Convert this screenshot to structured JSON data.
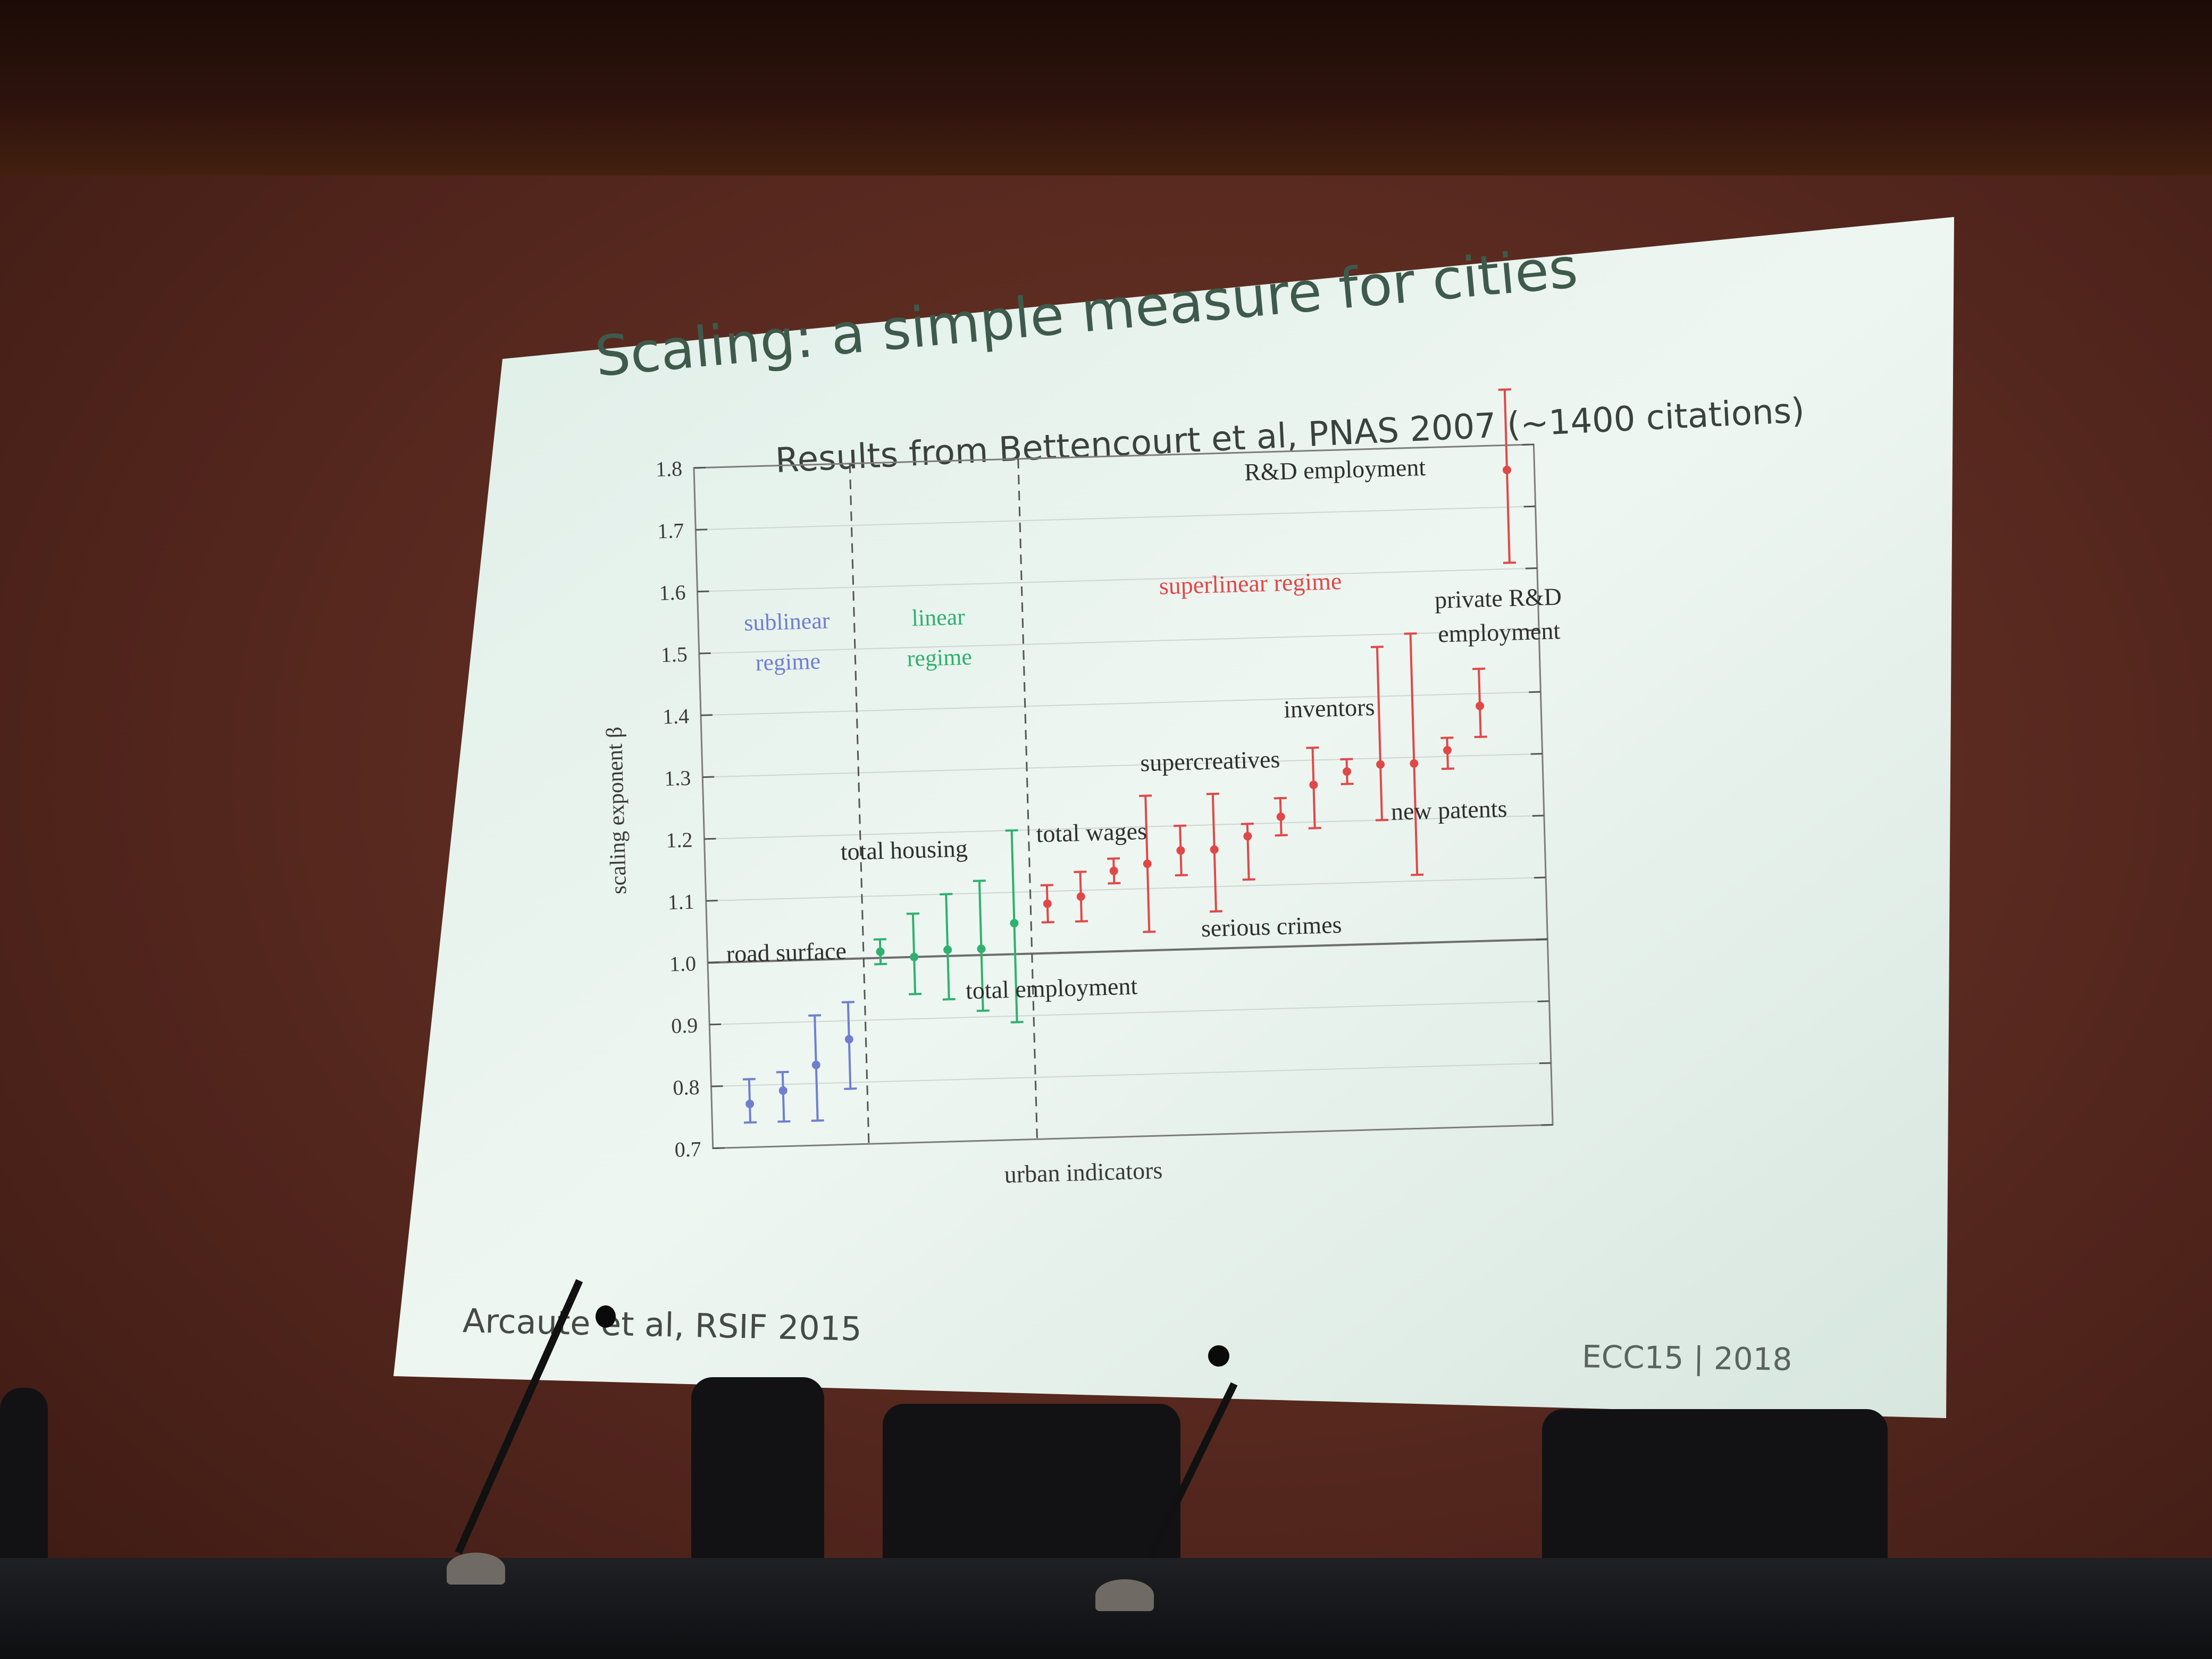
{
  "slide": {
    "title": "Scaling: a simple measure for cities",
    "subtitle": "Results from Bettencourt et al, PNAS 2007 (~1400 citations)",
    "footer_left": "Arcaute et al, RSIF 2015",
    "footer_right": "ECC15 | 2018"
  },
  "chart_data": {
    "type": "scatter",
    "xlabel": "urban indicators",
    "ylabel": "scaling exponent β",
    "ylim": [
      0.7,
      1.8
    ],
    "yticks": [
      "0.7",
      "0.8",
      "0.9",
      "1.0",
      "1.1",
      "1.2",
      "1.3",
      "1.4",
      "1.5",
      "1.6",
      "1.7",
      "1.8"
    ],
    "grid": true,
    "reference_line": 1.0,
    "regimes": [
      {
        "label_line1": "sublinear",
        "label_line2": "regime",
        "color": "#6f7fd0"
      },
      {
        "label_line1": "linear",
        "label_line2": "regime",
        "color": "#2fb070"
      },
      {
        "label_line1": "superlinear regime",
        "label_line2": "",
        "color": "#e04848"
      }
    ],
    "series": [
      {
        "regime": "sublinear",
        "color": "#6f7fd0",
        "points": [
          {
            "y": 0.77,
            "lo": 0.74,
            "hi": 0.81
          },
          {
            "y": 0.79,
            "lo": 0.74,
            "hi": 0.82
          },
          {
            "y": 0.83,
            "lo": 0.74,
            "hi": 0.91
          },
          {
            "y": 0.87,
            "lo": 0.79,
            "hi": 0.93
          }
        ]
      },
      {
        "regime": "linear",
        "color": "#2fb070",
        "points": [
          {
            "y": 1.01,
            "lo": 0.99,
            "hi": 1.03
          },
          {
            "y": 1.0,
            "lo": 0.94,
            "hi": 1.07
          },
          {
            "y": 1.01,
            "lo": 0.93,
            "hi": 1.1
          },
          {
            "y": 1.01,
            "lo": 0.91,
            "hi": 1.12
          },
          {
            "y": 1.05,
            "lo": 0.89,
            "hi": 1.2
          }
        ]
      },
      {
        "regime": "superlinear",
        "color": "#e04848",
        "points": [
          {
            "y": 1.08,
            "lo": 1.05,
            "hi": 1.11
          },
          {
            "y": 1.09,
            "lo": 1.05,
            "hi": 1.13
          },
          {
            "y": 1.13,
            "lo": 1.11,
            "hi": 1.15
          },
          {
            "y": 1.14,
            "lo": 1.03,
            "hi": 1.25
          },
          {
            "y": 1.16,
            "lo": 1.12,
            "hi": 1.2
          },
          {
            "y": 1.16,
            "lo": 1.06,
            "hi": 1.25
          },
          {
            "y": 1.18,
            "lo": 1.11,
            "hi": 1.2
          },
          {
            "y": 1.21,
            "lo": 1.18,
            "hi": 1.24
          },
          {
            "y": 1.26,
            "lo": 1.19,
            "hi": 1.32
          },
          {
            "y": 1.28,
            "lo": 1.26,
            "hi": 1.3
          },
          {
            "y": 1.29,
            "lo": 1.2,
            "hi": 1.48
          },
          {
            "y": 1.29,
            "lo": 1.11,
            "hi": 1.5
          },
          {
            "y": 1.31,
            "lo": 1.28,
            "hi": 1.33
          },
          {
            "y": 1.38,
            "lo": 1.33,
            "hi": 1.44
          },
          {
            "y": 1.76,
            "lo": 1.61,
            "hi": 1.89
          }
        ]
      }
    ],
    "annotations": [
      {
        "text": "road surface"
      },
      {
        "text": "total housing"
      },
      {
        "text": "total employment"
      },
      {
        "text": "total wages"
      },
      {
        "text": "supercreatives"
      },
      {
        "text": "serious crimes"
      },
      {
        "text": "inventors"
      },
      {
        "text": "new patents"
      },
      {
        "text": "private R&D"
      },
      {
        "text": "employment"
      },
      {
        "text": "R&D employment"
      }
    ]
  }
}
